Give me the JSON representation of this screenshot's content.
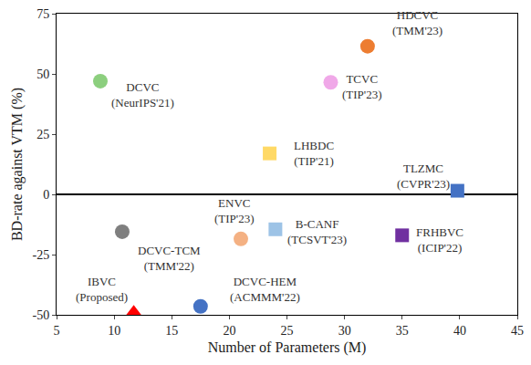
{
  "chart_data": {
    "type": "scatter",
    "x_label": "Number of Parameters (M)",
    "y_label": "BD-rate against VTM (%)",
    "xlim": [
      5,
      45
    ],
    "xticks": [
      5,
      10,
      15,
      20,
      25,
      30,
      35,
      40,
      45
    ],
    "ylim": [
      -50,
      75
    ],
    "yticks": [
      -50,
      -25,
      0,
      25,
      50,
      75
    ],
    "grid": false,
    "points": [
      {
        "label": [
          "DCVC",
          "(NeurIPS'21)"
        ],
        "x": 8.8,
        "y": 47,
        "color": "#8ccf7e",
        "marker": "circle"
      },
      {
        "label": [
          "HDCVC",
          "(TMM'23)"
        ],
        "x": 32,
        "y": 61.5,
        "color": "#ed7d31",
        "marker": "circle"
      },
      {
        "label": [
          "TCVC",
          "(TIP'23)"
        ],
        "x": 28.8,
        "y": 46.5,
        "color": "#f0a8e8",
        "marker": "circle"
      },
      {
        "label": [
          "LHBDC",
          "(TIP'21)"
        ],
        "x": 23.5,
        "y": 17,
        "color": "#ffd966",
        "marker": "square"
      },
      {
        "label": [
          "TLZMC",
          "(CVPR'23)"
        ],
        "x": 39.8,
        "y": 1.5,
        "color": "#4472c4",
        "marker": "square"
      },
      {
        "label": [
          "ENVC",
          "(TIP'23)"
        ],
        "x": 21,
        "y": -18.5,
        "color": "#f4b183",
        "marker": "circle"
      },
      {
        "label": [
          "B-CANF",
          "(TCSVT'23)"
        ],
        "x": 24,
        "y": -14.5,
        "color": "#9dc3e6",
        "marker": "square"
      },
      {
        "label": [
          "FRHBVC",
          "(ICIP'22)"
        ],
        "x": 35,
        "y": -17,
        "color": "#7030a0",
        "marker": "square"
      },
      {
        "label": [
          "DCVC-TCM",
          "(TMM'22)"
        ],
        "x": 10.7,
        "y": -15.5,
        "color": "#7f7f7f",
        "marker": "circle"
      },
      {
        "label": [
          "DCVC-HEM",
          "(ACMMM'22)"
        ],
        "x": 17.5,
        "y": -46.5,
        "color": "#4472c4",
        "marker": "circle"
      },
      {
        "label": [
          "IBVC",
          "(Proposed)"
        ],
        "x": 11.7,
        "y": -49,
        "color": "#ff0000",
        "marker": "triangle"
      }
    ]
  }
}
